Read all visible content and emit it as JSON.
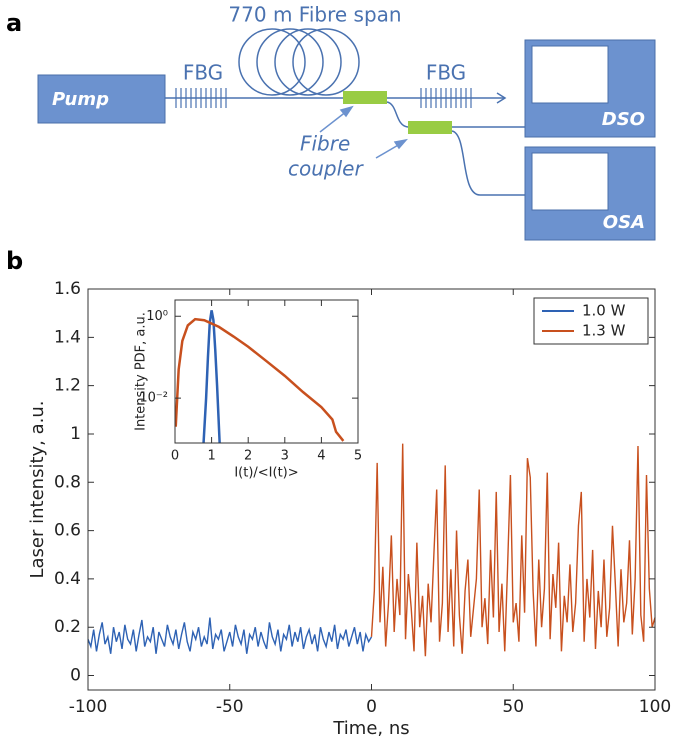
{
  "diagram": {
    "panel_label": "a",
    "pump": "Pump",
    "fibre_span": "770 m Fibre span",
    "fbg_1": "FBG",
    "fbg_2": "FBG",
    "coupler_label": [
      "Fibre",
      "coupler"
    ],
    "dso": "DSO",
    "osa": "OSA"
  },
  "panel_b_label": "b",
  "chart_data": [
    {
      "type": "line",
      "xlabel": "Time, ns",
      "ylabel": "Laser intensity, a.u.",
      "xlim": [
        -100,
        100
      ],
      "ylim": [
        -0.06,
        1.6
      ],
      "xticks": [
        -100,
        -50,
        0,
        50,
        100
      ],
      "yticks": [
        0,
        0.2,
        0.4,
        0.6,
        0.8,
        1,
        1.2,
        1.4,
        1.6
      ],
      "grid": false,
      "legend": "upper right",
      "series": [
        {
          "name": "1.0 W",
          "color": "#2e62b4",
          "x": [
            -100,
            -99,
            -98,
            -97,
            -96,
            -95,
            -94,
            -93,
            -92,
            -91,
            -90,
            -89,
            -88,
            -87,
            -86,
            -85,
            -84,
            -83,
            -82,
            -81,
            -80,
            -79,
            -78,
            -77,
            -76,
            -75,
            -74,
            -73,
            -72,
            -71,
            -70,
            -69,
            -68,
            -67,
            -66,
            -65,
            -64,
            -63,
            -62,
            -61,
            -60,
            -59,
            -58,
            -57,
            -56,
            -55,
            -54,
            -53,
            -52,
            -51,
            -50,
            -49,
            -48,
            -47,
            -46,
            -45,
            -44,
            -43,
            -42,
            -41,
            -40,
            -39,
            -38,
            -37,
            -36,
            -35,
            -34,
            -33,
            -32,
            -31,
            -30,
            -29,
            -28,
            -27,
            -26,
            -25,
            -24,
            -23,
            -22,
            -21,
            -20,
            -19,
            -18,
            -17,
            -16,
            -15,
            -14,
            -13,
            -12,
            -11,
            -10,
            -9,
            -8,
            -7,
            -6,
            -5,
            -4,
            -3,
            -2,
            -1,
            0
          ],
          "values": [
            0.15,
            0.12,
            0.19,
            0.1,
            0.17,
            0.22,
            0.13,
            0.16,
            0.09,
            0.2,
            0.14,
            0.18,
            0.11,
            0.21,
            0.15,
            0.13,
            0.19,
            0.1,
            0.17,
            0.23,
            0.12,
            0.16,
            0.14,
            0.2,
            0.09,
            0.18,
            0.15,
            0.12,
            0.21,
            0.16,
            0.13,
            0.19,
            0.11,
            0.17,
            0.22,
            0.14,
            0.1,
            0.18,
            0.15,
            0.2,
            0.12,
            0.16,
            0.13,
            0.24,
            0.11,
            0.17,
            0.15,
            0.19,
            0.1,
            0.14,
            0.18,
            0.12,
            0.21,
            0.16,
            0.13,
            0.19,
            0.09,
            0.17,
            0.15,
            0.2,
            0.12,
            0.18,
            0.14,
            0.11,
            0.22,
            0.16,
            0.13,
            0.19,
            0.1,
            0.17,
            0.15,
            0.21,
            0.12,
            0.18,
            0.14,
            0.2,
            0.11,
            0.16,
            0.19,
            0.13,
            0.17,
            0.1,
            0.2,
            0.15,
            0.12,
            0.18,
            0.14,
            0.21,
            0.11,
            0.17,
            0.15,
            0.19,
            0.12,
            0.16,
            0.2,
            0.13,
            0.18,
            0.1,
            0.17,
            0.14,
            0.16
          ]
        },
        {
          "name": "1.3 W",
          "color": "#c8501e",
          "x": [
            0,
            1,
            2,
            3,
            4,
            5,
            6,
            7,
            8,
            9,
            10,
            11,
            12,
            13,
            14,
            15,
            16,
            17,
            18,
            19,
            20,
            21,
            22,
            23,
            24,
            25,
            26,
            27,
            28,
            29,
            30,
            31,
            32,
            33,
            34,
            35,
            36,
            37,
            38,
            39,
            40,
            41,
            42,
            43,
            44,
            45,
            46,
            47,
            48,
            49,
            50,
            51,
            52,
            53,
            54,
            55,
            56,
            57,
            58,
            59,
            60,
            61,
            62,
            63,
            64,
            65,
            66,
            67,
            68,
            69,
            70,
            71,
            72,
            73,
            74,
            75,
            76,
            77,
            78,
            79,
            80,
            81,
            82,
            83,
            84,
            85,
            86,
            87,
            88,
            89,
            90,
            91,
            92,
            93,
            94,
            95,
            96,
            97,
            98,
            99,
            100
          ],
          "values": [
            0.16,
            0.35,
            0.88,
            0.22,
            0.45,
            0.12,
            0.3,
            0.58,
            0.18,
            0.4,
            0.25,
            0.96,
            0.15,
            0.42,
            0.28,
            0.1,
            0.55,
            0.2,
            0.33,
            0.08,
            0.38,
            0.22,
            0.5,
            0.77,
            0.14,
            0.3,
            0.87,
            0.18,
            0.44,
            0.12,
            0.6,
            0.25,
            0.09,
            0.35,
            0.48,
            0.16,
            0.28,
            0.4,
            0.77,
            0.2,
            0.32,
            0.13,
            0.52,
            0.24,
            0.76,
            0.18,
            0.38,
            0.1,
            0.45,
            0.83,
            0.22,
            0.3,
            0.14,
            0.58,
            0.26,
            0.9,
            0.82,
            0.35,
            0.12,
            0.48,
            0.2,
            0.36,
            0.84,
            0.15,
            0.42,
            0.28,
            0.55,
            0.1,
            0.33,
            0.22,
            0.46,
            0.18,
            0.3,
            0.62,
            0.76,
            0.14,
            0.4,
            0.24,
            0.52,
            0.11,
            0.35,
            0.2,
            0.48,
            0.16,
            0.28,
            0.62,
            0.38,
            0.12,
            0.44,
            0.22,
            0.3,
            0.56,
            0.17,
            0.4,
            0.95,
            0.25,
            0.14,
            0.83,
            0.36,
            0.2,
            0.24
          ]
        }
      ]
    },
    {
      "type": "line",
      "xlabel": "I(t)/<I(t)>",
      "ylabel": "Intensity PDF, a.u.",
      "xlim": [
        0,
        5
      ],
      "ylim": [
        0.0008,
        2.5
      ],
      "log_y": true,
      "xticks": [
        0,
        1,
        2,
        3,
        4,
        5
      ],
      "yticks": [
        {
          "value": 1,
          "label": "10⁰"
        },
        {
          "value": 0.01,
          "label": "10⁻²"
        }
      ],
      "grid": false,
      "series": [
        {
          "color": "#2e62b4",
          "x": [
            0.78,
            0.85,
            0.9,
            0.95,
            1.0,
            1.05,
            1.1,
            1.15,
            1.22
          ],
          "values": [
            0.0008,
            0.01,
            0.1,
            0.7,
            1.4,
            0.8,
            0.15,
            0.02,
            0.0008
          ]
        },
        {
          "color": "#c8501e",
          "x": [
            0.02,
            0.1,
            0.2,
            0.35,
            0.55,
            0.8,
            1.2,
            1.6,
            2.0,
            2.5,
            3.0,
            3.5,
            4.0,
            4.3,
            4.4,
            4.6
          ],
          "values": [
            0.002,
            0.05,
            0.25,
            0.6,
            0.85,
            0.8,
            0.55,
            0.32,
            0.18,
            0.08,
            0.035,
            0.014,
            0.006,
            0.003,
            0.0015,
            0.0009
          ]
        }
      ]
    }
  ]
}
